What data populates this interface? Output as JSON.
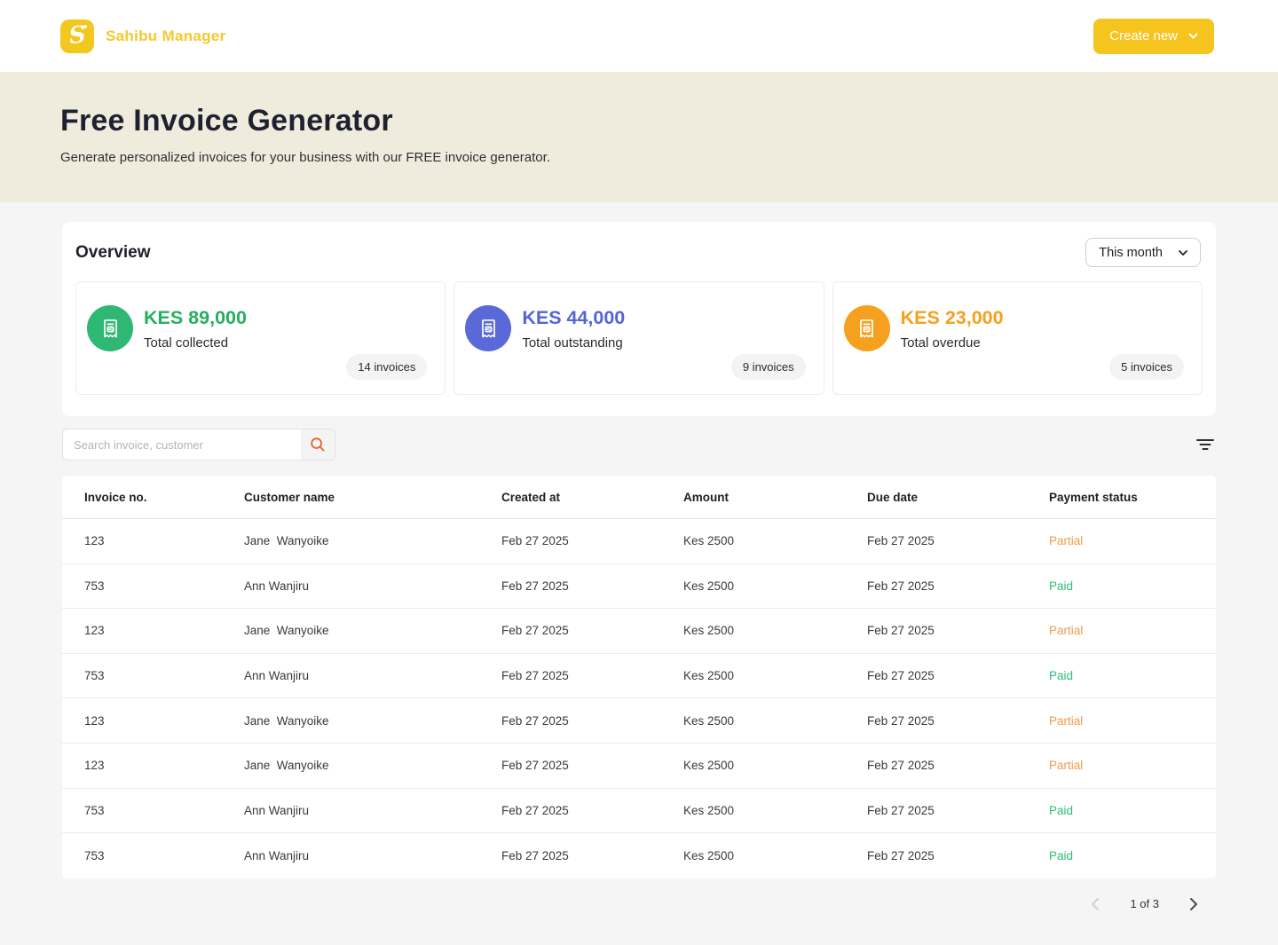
{
  "header": {
    "brand": "Sahibu Manager",
    "create_new_label": "Create new"
  },
  "hero": {
    "title": "Free Invoice Generator",
    "subtitle": "Generate personalized invoices for your business with our FREE invoice generator."
  },
  "overview": {
    "title": "Overview",
    "period_selector": "This month",
    "cards": [
      {
        "amount": "KES 89,000",
        "label": "Total collected",
        "badge": "14 invoices",
        "icon_bg": "#2EB873",
        "amount_color": "#27AE60"
      },
      {
        "amount": "KES 44,000",
        "label": "Total outstanding",
        "badge": "9 invoices",
        "icon_bg": "#5B69D8",
        "amount_color": "#5464D8"
      },
      {
        "amount": "KES 23,000",
        "label": "Total overdue",
        "badge": "5 invoices",
        "icon_bg": "#F5A11F",
        "amount_color": "#F5A01D"
      }
    ]
  },
  "search": {
    "placeholder": "Search invoice, customer"
  },
  "table": {
    "columns": [
      "Invoice no.",
      "Customer name",
      "Created at",
      "Amount",
      "Due date",
      "Payment status"
    ],
    "status_colors": {
      "Paid": "#2DBE74",
      "Partial": "#F2994A"
    },
    "rows": [
      {
        "invoice_no": "123",
        "customer": "Jane  Wanyoike",
        "created_at": "Feb 27 2025",
        "amount": "Kes 2500",
        "due_date": "Feb 27 2025",
        "status": "Partial"
      },
      {
        "invoice_no": "753",
        "customer": "Ann Wanjiru",
        "created_at": "Feb 27 2025",
        "amount": "Kes 2500",
        "due_date": "Feb 27 2025",
        "status": "Paid"
      },
      {
        "invoice_no": "123",
        "customer": "Jane  Wanyoike",
        "created_at": "Feb 27 2025",
        "amount": "Kes 2500",
        "due_date": "Feb 27 2025",
        "status": "Partial"
      },
      {
        "invoice_no": "753",
        "customer": "Ann Wanjiru",
        "created_at": "Feb 27 2025",
        "amount": "Kes 2500",
        "due_date": "Feb 27 2025",
        "status": "Paid"
      },
      {
        "invoice_no": "123",
        "customer": "Jane  Wanyoike",
        "created_at": "Feb 27 2025",
        "amount": "Kes 2500",
        "due_date": "Feb 27 2025",
        "status": "Partial"
      },
      {
        "invoice_no": "123",
        "customer": "Jane  Wanyoike",
        "created_at": "Feb 27 2025",
        "amount": "Kes 2500",
        "due_date": "Feb 27 2025",
        "status": "Partial"
      },
      {
        "invoice_no": "753",
        "customer": "Ann Wanjiru",
        "created_at": "Feb 27 2025",
        "amount": "Kes 2500",
        "due_date": "Feb 27 2025",
        "status": "Paid"
      },
      {
        "invoice_no": "753",
        "customer": "Ann Wanjiru",
        "created_at": "Feb 27 2025",
        "amount": "Kes 2500",
        "due_date": "Feb 27 2025",
        "status": "Paid"
      }
    ]
  },
  "pagination": {
    "label": "1 of 3"
  },
  "colors": {
    "accent_yellow": "#F5C41E",
    "hero_bg": "#EFECDD",
    "page_bg": "#F5F5F5",
    "search_icon": "#E8622C"
  }
}
